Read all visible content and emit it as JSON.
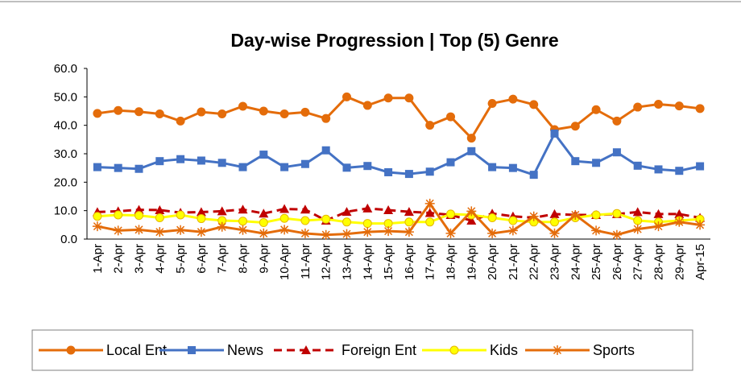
{
  "chart_data": {
    "type": "line",
    "title": "Day-wise Progression | Top (5) Genre",
    "categories": [
      "1-Apr",
      "2-Apr",
      "3-Apr",
      "4-Apr",
      "5-Apr",
      "6-Apr",
      "7-Apr",
      "8-Apr",
      "9-Apr",
      "10-Apr",
      "11-Apr",
      "12-Apr",
      "13-Apr",
      "14-Apr",
      "15-Apr",
      "16-Apr",
      "17-Apr",
      "18-Apr",
      "19-Apr",
      "20-Apr",
      "21-Apr",
      "22-Apr",
      "23-Apr",
      "24-Apr",
      "25-Apr",
      "26-Apr",
      "27-Apr",
      "28-Apr",
      "29-Apr",
      "Apr-15"
    ],
    "ylim": [
      0,
      60
    ],
    "yticks": [
      {
        "value": 0,
        "label": "0.0"
      },
      {
        "value": 10,
        "label": "10.0"
      },
      {
        "value": 20,
        "label": "20.0"
      },
      {
        "value": 30,
        "label": "30.0"
      },
      {
        "value": 40,
        "label": "40.0"
      },
      {
        "value": 50,
        "label": "50.0"
      },
      {
        "value": 60,
        "label": "60.0"
      }
    ],
    "legend": "bottom",
    "series": [
      {
        "name": "Local Ent",
        "color": "#e46c0a",
        "marker": "circle",
        "values": [
          44.2,
          45.2,
          44.8,
          44.0,
          41.5,
          44.7,
          44.0,
          46.7,
          45.0,
          44.0,
          44.6,
          42.4,
          50.0,
          47.0,
          49.6,
          49.6,
          40.0,
          43.0,
          35.5,
          47.7,
          49.2,
          47.3,
          38.5,
          39.7,
          45.5,
          41.5,
          46.4,
          47.4,
          46.8,
          45.9
        ]
      },
      {
        "name": "News",
        "color": "#4472c4",
        "marker": "square",
        "values": [
          25.3,
          25.0,
          24.7,
          27.4,
          28.1,
          27.6,
          26.8,
          25.3,
          29.7,
          25.3,
          26.4,
          31.2,
          25.1,
          25.7,
          23.5,
          22.9,
          23.7,
          27.0,
          30.9,
          25.3,
          25.0,
          22.6,
          37.1,
          27.4,
          26.8,
          30.5,
          25.8,
          24.5,
          24.0,
          25.6
        ]
      },
      {
        "name": "Foreign Ent",
        "color": "#c00000",
        "marker": "triangle",
        "dashed": true,
        "values": [
          9.5,
          9.8,
          10.3,
          10.2,
          9.3,
          9.5,
          9.8,
          10.4,
          9.0,
          10.6,
          10.4,
          6.5,
          9.6,
          10.8,
          10.2,
          9.6,
          9.2,
          8.5,
          6.5,
          9.0,
          8.0,
          7.5,
          8.8,
          8.5,
          8.5,
          8.8,
          9.5,
          8.8,
          8.8,
          7.5
        ]
      },
      {
        "name": "Kids",
        "color": "#ffff00",
        "marker": "circle",
        "values": [
          8.0,
          8.5,
          8.3,
          7.5,
          8.5,
          7.2,
          6.5,
          6.3,
          5.8,
          7.3,
          6.5,
          7.0,
          6.0,
          5.5,
          5.5,
          6.0,
          6.0,
          8.8,
          8.5,
          7.5,
          6.5,
          6.0,
          6.0,
          7.5,
          8.5,
          9.0,
          6.5,
          6.0,
          6.5,
          7.0
        ]
      },
      {
        "name": "Sports",
        "color": "#e46c0a",
        "marker": "star",
        "values": [
          4.5,
          3.0,
          3.3,
          2.5,
          3.2,
          2.5,
          4.3,
          3.2,
          2.0,
          3.3,
          2.0,
          1.5,
          1.8,
          2.5,
          2.8,
          2.5,
          12.5,
          2.0,
          9.8,
          2.0,
          3.0,
          8.0,
          2.0,
          8.5,
          3.0,
          1.5,
          3.5,
          4.5,
          6.0,
          5.0
        ]
      }
    ]
  }
}
